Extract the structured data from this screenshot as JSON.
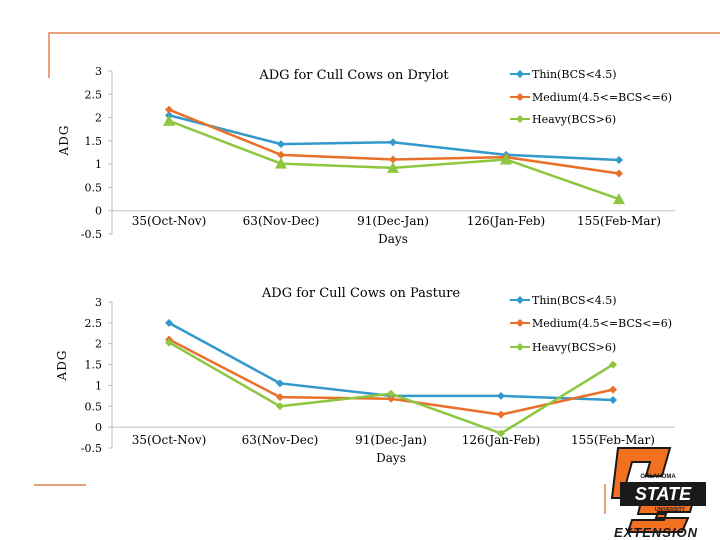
{
  "colors": {
    "thin": "#3399cc",
    "medium": "#e8702a",
    "heavy": "#8dc63f",
    "decor": "#e8a37a",
    "brand_orange": "#f37021",
    "brand_dark": "#1a1a1a"
  },
  "logo": {
    "name": "oklahoma-state-extension-logo",
    "wordmark": "STATE",
    "small_text": "OKLAHOMA",
    "university": "UNIVERSITY",
    "tagline": "EXTENSION"
  },
  "chart_data": [
    {
      "type": "line",
      "title": "ADG for Cull Cows on Drylot",
      "xlabel": "Days",
      "ylabel": "ADG",
      "categories": [
        "35(Oct-Nov)",
        "63(Nov-Dec)",
        "91(Dec-Jan)",
        "126(Jan-Feb)",
        "155(Feb-Mar)"
      ],
      "y_ticks": [
        "3",
        "2.5",
        "2",
        "1.5",
        "1",
        "0.5",
        "0",
        "-0.5"
      ],
      "ylim": [
        -0.5,
        3
      ],
      "grid": false,
      "legend_position": "top-right",
      "series": [
        {
          "name": "Thin(BCS<4.5)",
          "color_key": "thin",
          "marker": "diamond",
          "values": [
            2.05,
            1.43,
            1.47,
            1.2,
            1.09
          ]
        },
        {
          "name": "Medium(4.5<=BCS<=6)",
          "color_key": "medium",
          "marker": "diamond",
          "values": [
            2.17,
            1.2,
            1.1,
            1.15,
            0.8
          ]
        },
        {
          "name": "Heavy(BCS>6)",
          "color_key": "heavy",
          "marker": "triangle",
          "values": [
            1.93,
            1.01,
            0.92,
            1.1,
            0.25
          ]
        }
      ]
    },
    {
      "type": "line",
      "title": "ADG for Cull Cows on Pasture",
      "xlabel": "Days",
      "ylabel": "ADG",
      "categories": [
        "35(Oct-Nov)",
        "63(Nov-Dec)",
        "91(Dec-Jan)",
        "126(Jan-Feb)",
        "155(Feb-Mar)"
      ],
      "y_ticks": [
        "3",
        "2.5",
        "2",
        "1.5",
        "1",
        "0.5",
        "0",
        "-0.5"
      ],
      "ylim": [
        -0.5,
        3
      ],
      "grid": false,
      "legend_position": "top-right",
      "series": [
        {
          "name": "Thin(BCS<4.5)",
          "color_key": "thin",
          "marker": "diamond",
          "values": [
            2.5,
            1.05,
            0.75,
            0.75,
            0.65
          ]
        },
        {
          "name": "Medium(4.5<=BCS<=6)",
          "color_key": "medium",
          "marker": "diamond",
          "values": [
            2.1,
            0.72,
            0.68,
            0.3,
            0.9
          ]
        },
        {
          "name": "Heavy(BCS>6)",
          "color_key": "heavy",
          "marker": "diamond",
          "values": [
            2.03,
            0.5,
            0.8,
            -0.15,
            1.5
          ]
        }
      ]
    }
  ]
}
